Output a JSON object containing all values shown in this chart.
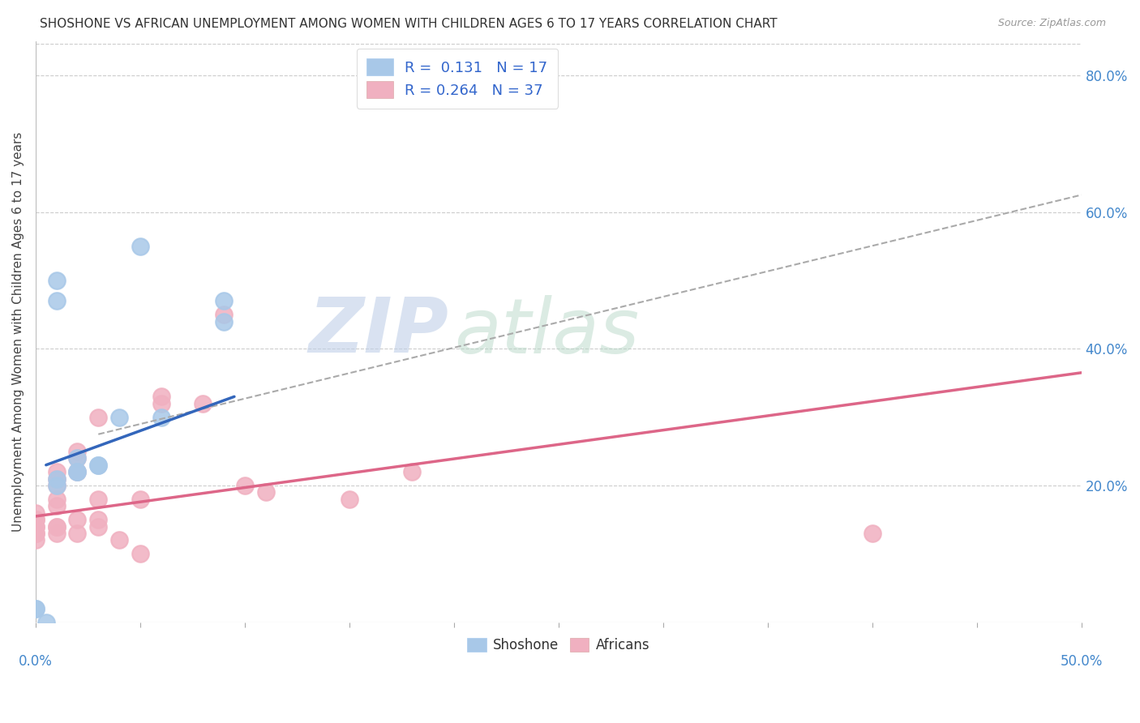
{
  "title": "SHOSHONE VS AFRICAN UNEMPLOYMENT AMONG WOMEN WITH CHILDREN AGES 6 TO 17 YEARS CORRELATION CHART",
  "source": "Source: ZipAtlas.com",
  "ylabel": "Unemployment Among Women with Children Ages 6 to 17 years",
  "watermark_zip": "ZIP",
  "watermark_atlas": "atlas",
  "xlim": [
    0.0,
    0.5
  ],
  "ylim": [
    0.0,
    0.85
  ],
  "x_ticks": [
    0.0,
    0.05,
    0.1,
    0.15,
    0.2,
    0.25,
    0.3,
    0.35,
    0.4,
    0.45,
    0.5
  ],
  "y_ticks_right": [
    0.2,
    0.4,
    0.6,
    0.8
  ],
  "y_tick_labels_right": [
    "20.0%",
    "40.0%",
    "60.0%",
    "80.0%"
  ],
  "shoshone_color": "#a8c8e8",
  "african_color": "#f0b0c0",
  "shoshone_R": 0.131,
  "shoshone_N": 17,
  "african_R": 0.264,
  "african_N": 37,
  "shoshone_scatter": [
    [
      0.0,
      0.02
    ],
    [
      0.0,
      0.02
    ],
    [
      0.005,
      0.0
    ],
    [
      0.01,
      0.21
    ],
    [
      0.01,
      0.2
    ],
    [
      0.01,
      0.47
    ],
    [
      0.01,
      0.5
    ],
    [
      0.02,
      0.24
    ],
    [
      0.02,
      0.22
    ],
    [
      0.02,
      0.22
    ],
    [
      0.03,
      0.23
    ],
    [
      0.03,
      0.23
    ],
    [
      0.04,
      0.3
    ],
    [
      0.05,
      0.55
    ],
    [
      0.06,
      0.3
    ],
    [
      0.09,
      0.47
    ],
    [
      0.09,
      0.44
    ]
  ],
  "african_scatter": [
    [
      0.0,
      0.12
    ],
    [
      0.0,
      0.13
    ],
    [
      0.0,
      0.13
    ],
    [
      0.0,
      0.14
    ],
    [
      0.0,
      0.14
    ],
    [
      0.0,
      0.15
    ],
    [
      0.0,
      0.15
    ],
    [
      0.0,
      0.16
    ],
    [
      0.01,
      0.13
    ],
    [
      0.01,
      0.14
    ],
    [
      0.01,
      0.14
    ],
    [
      0.01,
      0.17
    ],
    [
      0.01,
      0.18
    ],
    [
      0.01,
      0.2
    ],
    [
      0.01,
      0.21
    ],
    [
      0.01,
      0.22
    ],
    [
      0.02,
      0.13
    ],
    [
      0.02,
      0.15
    ],
    [
      0.02,
      0.22
    ],
    [
      0.02,
      0.24
    ],
    [
      0.02,
      0.25
    ],
    [
      0.03,
      0.14
    ],
    [
      0.03,
      0.15
    ],
    [
      0.03,
      0.18
    ],
    [
      0.03,
      0.3
    ],
    [
      0.04,
      0.12
    ],
    [
      0.05,
      0.1
    ],
    [
      0.05,
      0.18
    ],
    [
      0.06,
      0.33
    ],
    [
      0.06,
      0.32
    ],
    [
      0.08,
      0.32
    ],
    [
      0.09,
      0.45
    ],
    [
      0.1,
      0.2
    ],
    [
      0.11,
      0.19
    ],
    [
      0.15,
      0.18
    ],
    [
      0.18,
      0.22
    ],
    [
      0.4,
      0.13
    ]
  ],
  "shoshone_line": {
    "x0": 0.005,
    "x1": 0.095,
    "y0": 0.23,
    "y1": 0.33
  },
  "african_line": {
    "x0": 0.0,
    "x1": 0.5,
    "y0": 0.155,
    "y1": 0.365
  },
  "dashed_line": {
    "x0": 0.03,
    "x1": 0.5,
    "y0": 0.275,
    "y1": 0.625
  },
  "background_color": "#ffffff",
  "grid_color": "#cccccc",
  "title_fontsize": 11,
  "source_fontsize": 9,
  "legend_fontsize": 13,
  "axis_label_fontsize": 11,
  "tick_label_color": "#4488cc",
  "legend_text_color": "#3366cc"
}
